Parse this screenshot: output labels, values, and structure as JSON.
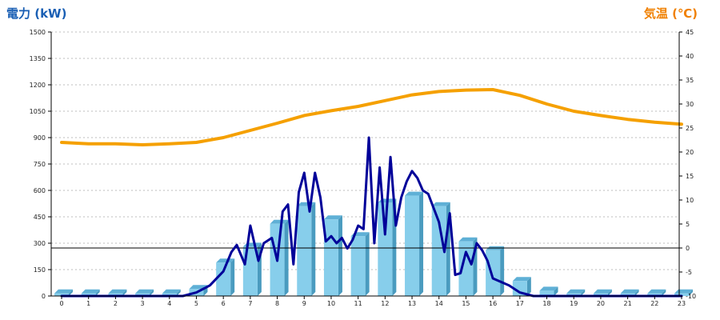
{
  "chart_data": {
    "type": "bar",
    "title": "",
    "y_left_label": "電力 (kW)",
    "y_right_label": "気温 (℃)",
    "y_left_ticks": [
      0,
      150,
      300,
      450,
      600,
      750,
      900,
      1050,
      1200,
      1350,
      1500
    ],
    "y_right_ticks": [
      -10,
      -5,
      0,
      5,
      10,
      15,
      20,
      25,
      30,
      35,
      40,
      45
    ],
    "ylim_left": [
      0,
      1500
    ],
    "ylim_right": [
      -10,
      45
    ],
    "categories": [
      "0",
      "1",
      "2",
      "3",
      "4",
      "5",
      "6",
      "7",
      "8",
      "9",
      "10",
      "11",
      "12",
      "13",
      "14",
      "15",
      "16",
      "17",
      "18",
      "19",
      "20",
      "21",
      "22",
      "23"
    ],
    "grid": true,
    "zero_reference_line": 0,
    "colors": {
      "bars": "#87ceeb",
      "bar_shade": "#4a9bbf",
      "power_line": "#000099",
      "temperature": "#f5a000",
      "left_title": "#1a5fb4",
      "right_title": "#f08000"
    },
    "series": [
      {
        "type": "bar",
        "axis": "left",
        "values": [
          15,
          15,
          15,
          15,
          15,
          40,
          190,
          280,
          410,
          510,
          435,
          340,
          530,
          570,
          510,
          310,
          260,
          85,
          30,
          15,
          15,
          15,
          15,
          15
        ]
      },
      {
        "type": "line",
        "axis": "left",
        "x": [
          0,
          4.5,
          5.0,
          5.5,
          6.0,
          6.3,
          6.5,
          6.8,
          7.0,
          7.3,
          7.5,
          7.8,
          8.0,
          8.2,
          8.4,
          8.6,
          8.8,
          9.0,
          9.2,
          9.4,
          9.6,
          9.8,
          10.0,
          10.2,
          10.4,
          10.6,
          10.8,
          11.0,
          11.2,
          11.4,
          11.6,
          11.8,
          12.0,
          12.2,
          12.4,
          12.6,
          12.8,
          13.0,
          13.2,
          13.4,
          13.6,
          13.8,
          14.0,
          14.2,
          14.4,
          14.6,
          14.8,
          15.0,
          15.2,
          15.4,
          15.6,
          15.8,
          16.0,
          16.3,
          16.6,
          17.0,
          17.5,
          18.0,
          23
        ],
        "values": [
          0,
          0,
          20,
          60,
          140,
          250,
          290,
          180,
          400,
          200,
          300,
          330,
          200,
          480,
          520,
          180,
          590,
          700,
          480,
          700,
          560,
          310,
          340,
          300,
          330,
          270,
          320,
          400,
          380,
          900,
          300,
          730,
          350,
          790,
          400,
          560,
          650,
          710,
          670,
          600,
          580,
          500,
          420,
          250,
          470,
          120,
          130,
          250,
          180,
          300,
          260,
          200,
          100,
          80,
          60,
          20,
          0,
          0,
          0
        ]
      },
      {
        "type": "line",
        "axis": "right",
        "x": [
          0,
          1,
          2,
          3,
          4,
          5,
          6,
          7,
          8,
          9,
          10,
          11,
          12,
          13,
          14,
          15,
          16,
          17,
          18,
          19,
          20,
          21,
          22,
          23
        ],
        "values": [
          22.0,
          21.7,
          21.7,
          21.5,
          21.7,
          22.0,
          23.0,
          24.5,
          26.0,
          27.6,
          28.6,
          29.5,
          30.7,
          31.9,
          32.6,
          32.9,
          33.0,
          31.8,
          30.0,
          28.5,
          27.6,
          26.8,
          26.2,
          25.8
        ]
      }
    ]
  }
}
